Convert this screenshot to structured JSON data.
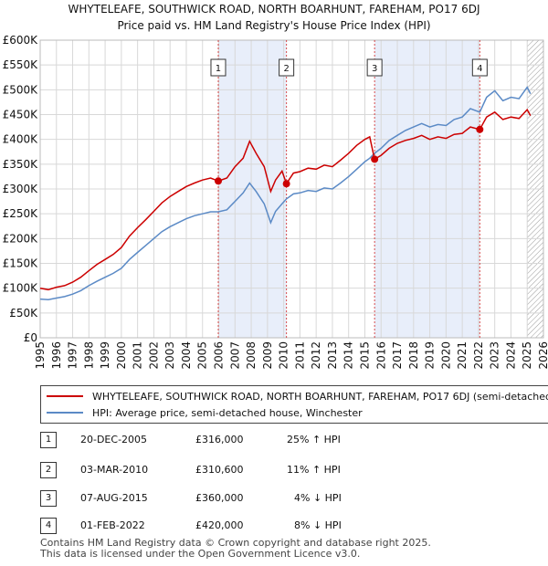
{
  "header": {
    "title_line1": "WHYTELEAFE, SOUTHWICK ROAD, NORTH BOARHUNT, FAREHAM, PO17 6DJ",
    "title_line2": "Price paid vs. HM Land Registry's House Price Index (HPI)"
  },
  "colors": {
    "property": "#cc0000",
    "hpi": "#5b8ac6",
    "shade": "#e8eefa",
    "marker": "#cc0000"
  },
  "chart_data": {
    "type": "line",
    "title": "WHYTELEAFE, SOUTHWICK ROAD, NORTH BOARHUNT, FAREHAM, PO17 6DJ",
    "subtitle": "Price paid vs. HM Land Registry's House Price Index (HPI)",
    "xlabel": "",
    "ylabel": "",
    "xlim": [
      1995,
      2026
    ],
    "ylim": [
      0,
      600000
    ],
    "x_ticks": [
      1995,
      1996,
      1997,
      1998,
      1999,
      2000,
      2001,
      2002,
      2003,
      2004,
      2005,
      2006,
      2007,
      2008,
      2009,
      2010,
      2011,
      2012,
      2013,
      2014,
      2015,
      2016,
      2017,
      2018,
      2019,
      2020,
      2021,
      2022,
      2023,
      2024,
      2025,
      2026
    ],
    "y_ticks": [
      0,
      50000,
      100000,
      150000,
      200000,
      250000,
      300000,
      350000,
      400000,
      450000,
      500000,
      550000,
      600000
    ],
    "y_tick_labels": [
      "£0",
      "£50K",
      "£100K",
      "£150K",
      "£200K",
      "£250K",
      "£300K",
      "£350K",
      "£400K",
      "£450K",
      "£500K",
      "£550K",
      "£600K"
    ],
    "grid": true,
    "shaded_ranges": [
      [
        2005.97,
        2010.17
      ],
      [
        2015.6,
        2022.08
      ]
    ],
    "hatched_from": 2025.0,
    "series": [
      {
        "name": "WHYTELEAFE, SOUTHWICK ROAD, NORTH BOARHUNT, FAREHAM, PO17 6DJ (semi-detached house)",
        "x": [
          1995,
          1995.5,
          1996,
          1996.5,
          1997,
          1997.5,
          1998,
          1998.5,
          1999,
          1999.5,
          2000,
          2000.5,
          2001,
          2001.5,
          2002,
          2002.5,
          2003,
          2003.5,
          2004,
          2004.5,
          2005,
          2005.5,
          2005.97,
          2006.5,
          2007,
          2007.5,
          2007.9,
          2008.3,
          2008.8,
          2009.2,
          2009.5,
          2009.9,
          2010.17,
          2010.6,
          2011,
          2011.5,
          2012,
          2012.5,
          2013,
          2013.5,
          2014,
          2014.5,
          2015,
          2015.3,
          2015.6,
          2016,
          2016.5,
          2017,
          2017.5,
          2018,
          2018.5,
          2019,
          2019.5,
          2020,
          2020.5,
          2021,
          2021.5,
          2022.08,
          2022.5,
          2023,
          2023.5,
          2024,
          2024.5,
          2025,
          2025.2
        ],
        "values": [
          100000,
          97000,
          102000,
          105000,
          112000,
          122000,
          135000,
          148000,
          158000,
          168000,
          182000,
          205000,
          222000,
          238000,
          255000,
          272000,
          285000,
          295000,
          305000,
          312000,
          318000,
          322000,
          316000,
          322000,
          345000,
          362000,
          396000,
          372000,
          345000,
          295000,
          318000,
          336000,
          310600,
          332000,
          335000,
          342000,
          340000,
          348000,
          345000,
          358000,
          372000,
          388000,
          400000,
          405000,
          360000,
          368000,
          382000,
          392000,
          398000,
          402000,
          408000,
          400000,
          405000,
          402000,
          410000,
          412000,
          425000,
          420000,
          445000,
          455000,
          440000,
          445000,
          442000,
          460000,
          448000
        ]
      },
      {
        "name": "HPI: Average price, semi-detached house, Winchester",
        "x": [
          1995,
          1995.5,
          1996,
          1996.5,
          1997,
          1997.5,
          1998,
          1998.5,
          1999,
          1999.5,
          2000,
          2000.5,
          2001,
          2001.5,
          2002,
          2002.5,
          2003,
          2003.5,
          2004,
          2004.5,
          2005,
          2005.5,
          2005.97,
          2006.5,
          2007,
          2007.5,
          2007.9,
          2008.3,
          2008.8,
          2009.2,
          2009.5,
          2009.9,
          2010.17,
          2010.6,
          2011,
          2011.5,
          2012,
          2012.5,
          2013,
          2013.5,
          2014,
          2014.5,
          2015,
          2015.3,
          2015.6,
          2016,
          2016.5,
          2017,
          2017.5,
          2018,
          2018.5,
          2019,
          2019.5,
          2020,
          2020.5,
          2021,
          2021.5,
          2022.08,
          2022.5,
          2023,
          2023.5,
          2024,
          2024.5,
          2025,
          2025.2
        ],
        "values": [
          78000,
          77000,
          80000,
          83000,
          88000,
          95000,
          105000,
          114000,
          122000,
          130000,
          140000,
          158000,
          172000,
          186000,
          200000,
          214000,
          224000,
          232000,
          240000,
          246000,
          250000,
          254000,
          254000,
          258000,
          275000,
          292000,
          312000,
          295000,
          270000,
          232000,
          255000,
          270000,
          280000,
          290000,
          292000,
          297000,
          295000,
          302000,
          300000,
          312000,
          325000,
          340000,
          355000,
          362000,
          372000,
          382000,
          398000,
          408000,
          418000,
          425000,
          432000,
          425000,
          430000,
          428000,
          440000,
          445000,
          462000,
          455000,
          485000,
          498000,
          478000,
          485000,
          482000,
          505000,
          492000
        ]
      }
    ],
    "sales": [
      {
        "label": "1",
        "x": 2005.97,
        "value": 316000
      },
      {
        "label": "2",
        "x": 2010.17,
        "value": 310600
      },
      {
        "label": "3",
        "x": 2015.6,
        "value": 360000
      },
      {
        "label": "4",
        "x": 2022.08,
        "value": 420000
      }
    ]
  },
  "legend": {
    "property_label": "WHYTELEAFE, SOUTHWICK ROAD, NORTH BOARHUNT, FAREHAM, PO17 6DJ (semi-detached house)",
    "hpi_label": "HPI: Average price, semi-detached house, Winchester"
  },
  "sales_table": [
    {
      "num": "1",
      "date": "20-DEC-2005",
      "price": "£316,000",
      "hpi": "25% ↑ HPI"
    },
    {
      "num": "2",
      "date": "03-MAR-2010",
      "price": "£310,600",
      "hpi": "11% ↑ HPI"
    },
    {
      "num": "3",
      "date": "07-AUG-2015",
      "price": "£360,000",
      "hpi": "4% ↓ HPI"
    },
    {
      "num": "4",
      "date": "01-FEB-2022",
      "price": "£420,000",
      "hpi": "8% ↓ HPI"
    }
  ],
  "footer": {
    "line1": "Contains HM Land Registry data © Crown copyright and database right 2025.",
    "line2": "This data is licensed under the Open Government Licence v3.0."
  }
}
